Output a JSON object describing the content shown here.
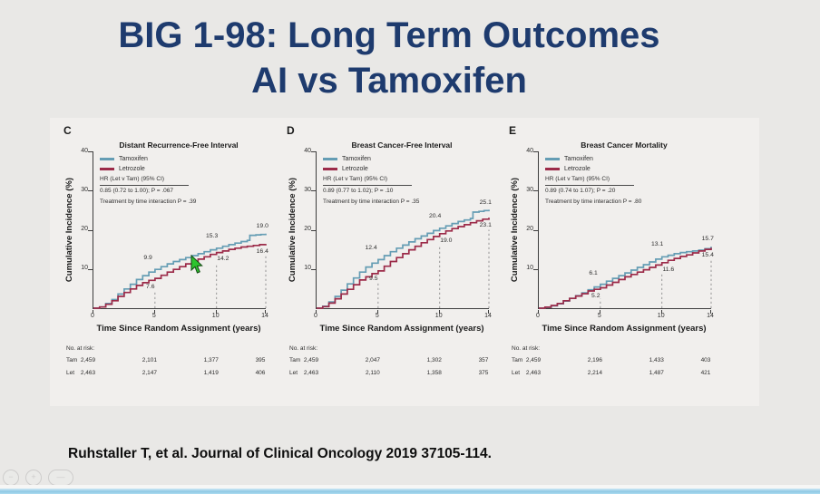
{
  "slide": {
    "title_line1": "BIG 1-98: Long Term Outcomes",
    "title_line2": "AI vs Tamoxifen",
    "title_color": "#1e3b6e",
    "citation": "Ruhstaller T, et al. Journal of Clinical Oncology 2019 37105-114.",
    "background_color": "#e9e8e6",
    "bottom_bar_color": "#8fc8e4"
  },
  "cursor": {
    "color": "#2ec42e"
  },
  "controls": {
    "items": [
      {
        "name": "zoom-out-control",
        "glyph": "−"
      },
      {
        "name": "zoom-in-control",
        "glyph": "+"
      },
      {
        "name": "pan-control",
        "glyph": "—"
      }
    ]
  },
  "chart_data": [
    {
      "panel": "C",
      "type": "line",
      "title": "Distant Recurrence-Free Interval",
      "xlabel": "Time Since Random Assignment (years)",
      "ylabel": "Cumulative Incidence (%)",
      "xlim": [
        0,
        14
      ],
      "ylim": [
        0,
        40
      ],
      "x_ticks": [
        0,
        5,
        10,
        14
      ],
      "y_ticks": [
        10,
        20,
        30,
        40
      ],
      "hr_label": "HR (Let v Tam) (95% CI)",
      "hr_value": "0.85 (0.72 to 1.00); P = .067",
      "interaction": "Treatment by time interaction P = .39",
      "at_risk_label": "No. at risk:",
      "series": [
        {
          "name": "Tamoxifen",
          "color": "#659db4",
          "points": [
            [
              0,
              0
            ],
            [
              0.5,
              0.3
            ],
            [
              1,
              1.2
            ],
            [
              1.5,
              2.2
            ],
            [
              2,
              3.6
            ],
            [
              2.5,
              4.9
            ],
            [
              3,
              6.1
            ],
            [
              3.5,
              7.3
            ],
            [
              4,
              8.3
            ],
            [
              4.5,
              9.2
            ],
            [
              5,
              9.9
            ],
            [
              5.5,
              10.6
            ],
            [
              6,
              11.3
            ],
            [
              6.5,
              11.9
            ],
            [
              7,
              12.4
            ],
            [
              7.5,
              12.9
            ],
            [
              8,
              13.4
            ],
            [
              8.5,
              13.9
            ],
            [
              9,
              14.4
            ],
            [
              9.5,
              14.9
            ],
            [
              10,
              15.3
            ],
            [
              10.5,
              15.8
            ],
            [
              11,
              16.2
            ],
            [
              11.5,
              16.6
            ],
            [
              12,
              17.0
            ],
            [
              12.5,
              17.3
            ],
            [
              12.7,
              18.6
            ],
            [
              13.2,
              18.7
            ],
            [
              13.6,
              18.8
            ],
            [
              14,
              19.0
            ]
          ]
        },
        {
          "name": "Letrozole",
          "color": "#9c2b49",
          "points": [
            [
              0,
              0
            ],
            [
              0.5,
              0.3
            ],
            [
              1,
              1.0
            ],
            [
              1.5,
              1.9
            ],
            [
              2,
              3.0
            ],
            [
              2.5,
              4.0
            ],
            [
              3,
              4.9
            ],
            [
              3.5,
              5.8
            ],
            [
              4,
              6.5
            ],
            [
              4.5,
              7.1
            ],
            [
              5,
              7.6
            ],
            [
              5.5,
              8.4
            ],
            [
              6,
              9.2
            ],
            [
              6.5,
              9.9
            ],
            [
              7,
              10.6
            ],
            [
              7.5,
              11.3
            ],
            [
              8,
              11.9
            ],
            [
              8.5,
              12.5
            ],
            [
              9,
              13.1
            ],
            [
              9.5,
              13.7
            ],
            [
              10,
              14.2
            ],
            [
              10.5,
              14.6
            ],
            [
              11,
              15.0
            ],
            [
              11.5,
              15.3
            ],
            [
              12,
              15.6
            ],
            [
              12.5,
              15.8
            ],
            [
              13,
              16.0
            ],
            [
              13.5,
              16.2
            ],
            [
              14,
              16.4
            ]
          ]
        }
      ],
      "value_labels": [
        {
          "text": "9.9",
          "x": 4.5,
          "y": 12.7
        },
        {
          "text": "7.6",
          "x": 4.7,
          "y": 5.4
        },
        {
          "text": "15.3",
          "x": 9.7,
          "y": 18.3
        },
        {
          "text": "14.2",
          "x": 10.6,
          "y": 12.4
        },
        {
          "text": "19.0",
          "x": 13.8,
          "y": 20.8
        },
        {
          "text": "16.4",
          "x": 13.8,
          "y": 14.4
        }
      ],
      "dashed_lines": [
        {
          "x": 5,
          "y2": 4.6
        },
        {
          "x": 10,
          "y2": 11.4
        },
        {
          "x": 14,
          "y2": 13.4
        }
      ],
      "at_risk": {
        "rows": [
          {
            "label": "Tam",
            "values": [
              "2,459",
              "2,101",
              "1,377",
              "395"
            ]
          },
          {
            "label": "Let",
            "values": [
              "2,463",
              "2,147",
              "1,419",
              "406"
            ]
          }
        ]
      }
    },
    {
      "panel": "D",
      "type": "line",
      "title": "Breast Cancer-Free Interval",
      "xlabel": "Time Since Random Assignment (years)",
      "ylabel": "Cumulative Incidence (%)",
      "xlim": [
        0,
        14
      ],
      "ylim": [
        0,
        40
      ],
      "x_ticks": [
        0,
        5,
        10,
        14
      ],
      "y_ticks": [
        10,
        20,
        30,
        40
      ],
      "hr_label": "HR (Let v Tam) (95% CI)",
      "hr_value": "0.89 (0.77 to 1.02); P = .10",
      "interaction": "Treatment by time interaction P = .35",
      "at_risk_label": "No. at risk:",
      "series": [
        {
          "name": "Tamoxifen",
          "color": "#659db4",
          "points": [
            [
              0,
              0
            ],
            [
              0.5,
              0.5
            ],
            [
              1,
              1.6
            ],
            [
              1.5,
              3.0
            ],
            [
              2,
              4.6
            ],
            [
              2.5,
              6.2
            ],
            [
              3,
              7.7
            ],
            [
              3.5,
              9.2
            ],
            [
              4,
              10.5
            ],
            [
              4.5,
              11.5
            ],
            [
              5,
              12.4
            ],
            [
              5.5,
              13.4
            ],
            [
              6,
              14.4
            ],
            [
              6.5,
              15.3
            ],
            [
              7,
              16.1
            ],
            [
              7.5,
              16.9
            ],
            [
              8,
              17.7
            ],
            [
              8.5,
              18.4
            ],
            [
              9,
              19.1
            ],
            [
              9.5,
              19.8
            ],
            [
              10,
              20.4
            ],
            [
              10.5,
              21.0
            ],
            [
              11,
              21.6
            ],
            [
              11.5,
              22.1
            ],
            [
              12,
              22.5
            ],
            [
              12.5,
              22.9
            ],
            [
              12.7,
              24.5
            ],
            [
              13.2,
              24.7
            ],
            [
              13.6,
              24.9
            ],
            [
              14,
              25.1
            ]
          ]
        },
        {
          "name": "Letrozole",
          "color": "#9c2b49",
          "points": [
            [
              0,
              0
            ],
            [
              0.5,
              0.4
            ],
            [
              1,
              1.3
            ],
            [
              1.5,
              2.4
            ],
            [
              2,
              3.6
            ],
            [
              2.5,
              4.8
            ],
            [
              3,
              6.0
            ],
            [
              3.5,
              7.2
            ],
            [
              4,
              8.0
            ],
            [
              4.5,
              8.8
            ],
            [
              5,
              9.5
            ],
            [
              5.5,
              10.7
            ],
            [
              6,
              11.9
            ],
            [
              6.5,
              12.9
            ],
            [
              7,
              13.9
            ],
            [
              7.5,
              14.9
            ],
            [
              8,
              15.8
            ],
            [
              8.5,
              16.7
            ],
            [
              9,
              17.5
            ],
            [
              9.5,
              18.3
            ],
            [
              10,
              19.0
            ],
            [
              10.5,
              19.7
            ],
            [
              11,
              20.3
            ],
            [
              11.5,
              20.8
            ],
            [
              12,
              21.3
            ],
            [
              12.5,
              21.8
            ],
            [
              13,
              22.3
            ],
            [
              13.5,
              22.7
            ],
            [
              14,
              23.1
            ]
          ]
        }
      ],
      "value_labels": [
        {
          "text": "12.4",
          "x": 4.5,
          "y": 15.2
        },
        {
          "text": "9.5",
          "x": 4.7,
          "y": 7.3
        },
        {
          "text": "20.4",
          "x": 9.7,
          "y": 23.4
        },
        {
          "text": "19.0",
          "x": 10.6,
          "y": 17.2
        },
        {
          "text": "25.1",
          "x": 13.8,
          "y": 26.9
        },
        {
          "text": "23.1",
          "x": 13.8,
          "y": 21.1
        }
      ],
      "dashed_lines": [
        {
          "x": 5,
          "y2": 6.5
        },
        {
          "x": 10,
          "y2": 16.0
        },
        {
          "x": 14,
          "y2": 20.0
        }
      ],
      "at_risk": {
        "rows": [
          {
            "label": "Tam",
            "values": [
              "2,459",
              "2,047",
              "1,302",
              "357"
            ]
          },
          {
            "label": "Let",
            "values": [
              "2,463",
              "2,110",
              "1,358",
              "375"
            ]
          }
        ]
      }
    },
    {
      "panel": "E",
      "type": "line",
      "title": "Breast Cancer Mortality",
      "xlabel": "Time Since Random Assignment (years)",
      "ylabel": "Cumulative Incidence (%)",
      "xlim": [
        0,
        14
      ],
      "ylim": [
        0,
        40
      ],
      "x_ticks": [
        0,
        5,
        10,
        14
      ],
      "y_ticks": [
        10,
        20,
        30,
        40
      ],
      "hr_label": "HR (Let v Tam) (95% CI)",
      "hr_value": "0.89 (0.74 to 1.07); P = .20",
      "interaction": "Treatment by time interaction P = .80",
      "at_risk_label": "No. at risk:",
      "series": [
        {
          "name": "Tamoxifen",
          "color": "#659db4",
          "points": [
            [
              0,
              0
            ],
            [
              0.5,
              0.2
            ],
            [
              1,
              0.6
            ],
            [
              1.5,
              1.1
            ],
            [
              2,
              1.8
            ],
            [
              2.5,
              2.5
            ],
            [
              3,
              3.2
            ],
            [
              3.5,
              3.9
            ],
            [
              4,
              4.7
            ],
            [
              4.5,
              5.4
            ],
            [
              5,
              6.1
            ],
            [
              5.5,
              6.9
            ],
            [
              6,
              7.6
            ],
            [
              6.5,
              8.3
            ],
            [
              7,
              9.0
            ],
            [
              7.5,
              9.7
            ],
            [
              8,
              10.4
            ],
            [
              8.5,
              11.1
            ],
            [
              9,
              11.8
            ],
            [
              9.5,
              12.5
            ],
            [
              10,
              13.1
            ],
            [
              10.5,
              13.5
            ],
            [
              11,
              13.9
            ],
            [
              11.5,
              14.2
            ],
            [
              12,
              14.4
            ],
            [
              12.5,
              14.6
            ],
            [
              13,
              14.8
            ],
            [
              13.5,
              15.2
            ],
            [
              14,
              15.7
            ]
          ]
        },
        {
          "name": "Letrozole",
          "color": "#9c2b49",
          "points": [
            [
              0,
              0
            ],
            [
              0.5,
              0.25
            ],
            [
              1,
              0.7
            ],
            [
              1.5,
              1.2
            ],
            [
              2,
              1.9
            ],
            [
              2.5,
              2.5
            ],
            [
              3,
              3.1
            ],
            [
              3.5,
              3.7
            ],
            [
              4,
              4.4
            ],
            [
              4.5,
              4.8
            ],
            [
              5,
              5.2
            ],
            [
              5.5,
              5.9
            ],
            [
              6,
              6.6
            ],
            [
              6.5,
              7.3
            ],
            [
              7,
              8.0
            ],
            [
              7.5,
              8.6
            ],
            [
              8,
              9.2
            ],
            [
              8.5,
              9.8
            ],
            [
              9,
              10.4
            ],
            [
              9.5,
              11.0
            ],
            [
              10,
              11.6
            ],
            [
              10.5,
              12.2
            ],
            [
              11,
              12.7
            ],
            [
              11.5,
              13.2
            ],
            [
              12,
              13.6
            ],
            [
              12.5,
              14.1
            ],
            [
              13,
              14.6
            ],
            [
              13.5,
              15.0
            ],
            [
              14,
              15.4
            ]
          ]
        }
      ],
      "value_labels": [
        {
          "text": "6.1",
          "x": 4.5,
          "y": 8.9
        },
        {
          "text": "5.2",
          "x": 4.7,
          "y": 3.0
        },
        {
          "text": "13.1",
          "x": 9.7,
          "y": 16.1
        },
        {
          "text": "11.6",
          "x": 10.6,
          "y": 9.8
        },
        {
          "text": "15.7",
          "x": 13.8,
          "y": 17.5
        },
        {
          "text": "15.4",
          "x": 13.8,
          "y": 13.4
        }
      ],
      "dashed_lines": [
        {
          "x": 5,
          "y2": 2.4
        },
        {
          "x": 10,
          "y2": 8.8
        },
        {
          "x": 14,
          "y2": 12.2
        }
      ],
      "at_risk": {
        "rows": [
          {
            "label": "Tam",
            "values": [
              "2,459",
              "2,196",
              "1,433",
              "403"
            ]
          },
          {
            "label": "Let",
            "values": [
              "2,463",
              "2,214",
              "1,487",
              "421"
            ]
          }
        ]
      }
    }
  ]
}
